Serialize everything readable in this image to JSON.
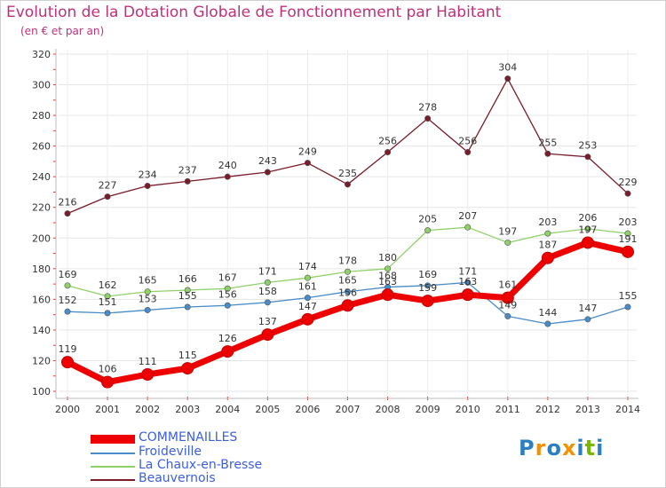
{
  "header": {
    "title": "Evolution de la Dotation Globale de Fonctionnement par Habitant",
    "subtitle": "(en € et par an)"
  },
  "logo": {
    "text": "Proxiti",
    "letters": [
      "P",
      "r",
      "o",
      "x",
      "i",
      "t",
      "i"
    ],
    "colors": [
      "#2c7fc0",
      "#f39200",
      "#2c7fc0",
      "#f39200",
      "#2c7fc0",
      "#7ab800",
      "#2c7fc0"
    ]
  },
  "chart_data": {
    "type": "line",
    "title": "Evolution de la Dotation Globale de Fonctionnement par Habitant",
    "subtitle": "(en € et par an)",
    "xlabel": "",
    "ylabel": "",
    "x": [
      "2000",
      "2001",
      "2002",
      "2003",
      "2004",
      "2005",
      "2006",
      "2007",
      "2008",
      "2009",
      "2010",
      "2011",
      "2012",
      "2013",
      "2014"
    ],
    "ylim": [
      100,
      320
    ],
    "yticks": [
      100,
      120,
      140,
      160,
      180,
      200,
      220,
      240,
      260,
      280,
      300,
      320
    ],
    "grid": true,
    "legend_position": "bottom-left",
    "series": [
      {
        "name": "COMMENAILLES",
        "color": "#ee0000",
        "emphasis": true,
        "values": [
          119,
          106,
          111,
          115,
          126,
          137,
          147,
          156,
          163,
          159,
          163,
          161,
          187,
          197,
          191
        ]
      },
      {
        "name": "Froideville",
        "color": "#4a8cc8",
        "emphasis": false,
        "values": [
          152,
          151,
          153,
          155,
          156,
          158,
          161,
          165,
          168,
          169,
          171,
          149,
          144,
          147,
          155
        ]
      },
      {
        "name": "La Chaux-en-Bresse",
        "color": "#8fd168",
        "emphasis": false,
        "values": [
          169,
          162,
          165,
          166,
          167,
          171,
          174,
          178,
          180,
          205,
          207,
          197,
          203,
          206,
          203
        ]
      },
      {
        "name": "Beauvernois",
        "color": "#7a1c2a",
        "emphasis": false,
        "values": [
          216,
          227,
          234,
          237,
          240,
          243,
          249,
          235,
          256,
          278,
          256,
          304,
          255,
          253,
          229
        ]
      }
    ]
  }
}
